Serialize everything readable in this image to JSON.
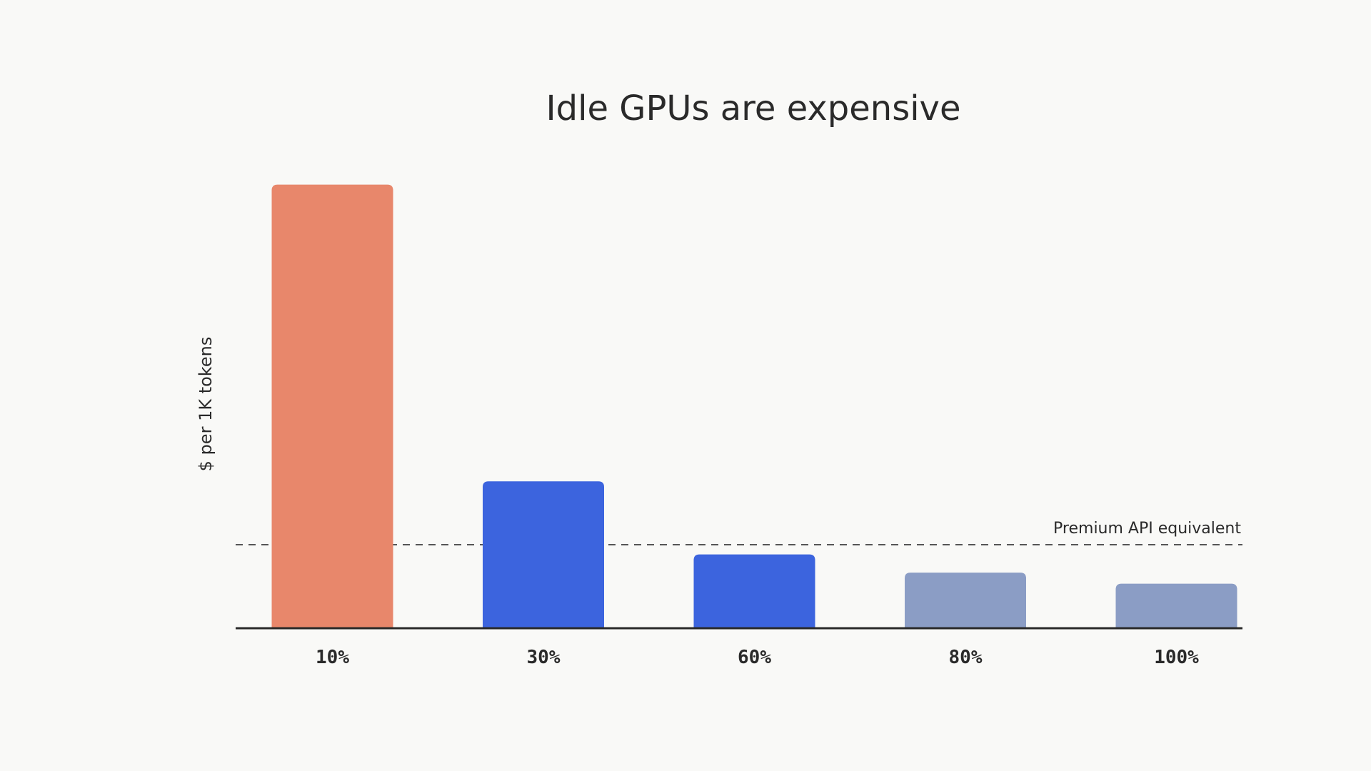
{
  "chart_data": {
    "type": "bar",
    "title": "Idle GPUs are expensive",
    "xlabel": "",
    "ylabel": "$ per 1K tokens",
    "categories": [
      "10%",
      "30%",
      "60%",
      "80%",
      "100%"
    ],
    "values": [
      10.0,
      3.3,
      1.65,
      1.24,
      0.99
    ],
    "ylim": [
      0,
      10.3
    ],
    "bar_colors": [
      "#e8876b",
      "#3c64de",
      "#3c64de",
      "#8b9dc5",
      "#8b9dc5"
    ],
    "reference_line": {
      "label": "Premium API equivalent",
      "value": 1.87,
      "style": "dashed",
      "color": "#555555"
    },
    "axis_color": "#2a2a2a",
    "grid": false,
    "legend": "none"
  }
}
